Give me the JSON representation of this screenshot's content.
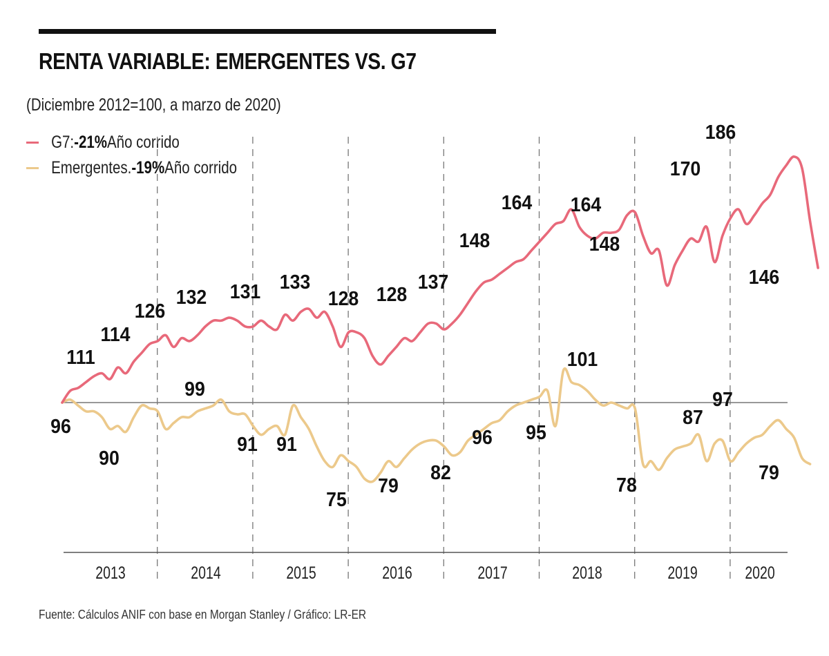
{
  "header": {
    "title": "RENTA VARIABLE: EMERGENTES VS. G7",
    "subtitle": "(Diciembre 2012=100, a marzo de 2020)"
  },
  "legend": [
    {
      "series": "G7",
      "prefix": "G7: ",
      "bold": "-21%",
      "suffix": " Año corrido",
      "color": "#e8697a"
    },
    {
      "series": "Emergentes",
      "prefix": "Emergentes. ",
      "bold": "-19%",
      "suffix": " Año corrido",
      "color": "#ecc98b"
    }
  ],
  "source": "Fuente: Cálculos ANIF con base en Morgan Stanley / Gráfico: LR-ER",
  "chart_data": {
    "type": "line",
    "title": "RENTA VARIABLE: EMERGENTES VS. G7",
    "subtitle": "(Diciembre 2012=100, a marzo de 2020)",
    "xlabel": "",
    "ylabel": "",
    "x_start": "2012-12",
    "x_end": "2020-03",
    "x_categories": [
      "2013",
      "2014",
      "2015",
      "2016",
      "2017",
      "2018",
      "2019",
      "2020"
    ],
    "baseline": 100,
    "ylim": [
      50,
      190
    ],
    "grid": "vertical dashed year separators",
    "legend_position": "top-left",
    "series": [
      {
        "name": "G7",
        "legend_note": "-21% Año corrido",
        "color": "#e8697a",
        "values": [
          100,
          104,
          105,
          107,
          109,
          110,
          108,
          112,
          110,
          114,
          117,
          120,
          121,
          123,
          119,
          122,
          121,
          123,
          126,
          128,
          128,
          129,
          128,
          126,
          126,
          128,
          126,
          125,
          130,
          128,
          131,
          132,
          129,
          131,
          126,
          119,
          124,
          124,
          122,
          116,
          113,
          116,
          119,
          122,
          121,
          124,
          127,
          127,
          125,
          127,
          130,
          134,
          138,
          141,
          142,
          144,
          146,
          148,
          149,
          152,
          155,
          158,
          161,
          162,
          166,
          160,
          157,
          156,
          158,
          158,
          159,
          164,
          165,
          157,
          151,
          152,
          140,
          147,
          152,
          156,
          155,
          160,
          148,
          157,
          163,
          166,
          161,
          164,
          168,
          171,
          177,
          181,
          184,
          180,
          162,
          146
        ],
        "annotations": [
          {
            "label": "111",
            "value": 111
          },
          {
            "label": "114",
            "value": 114
          },
          {
            "label": "126",
            "value": 126
          },
          {
            "label": "132",
            "value": 132
          },
          {
            "label": "131",
            "value": 131
          },
          {
            "label": "133",
            "value": 133
          },
          {
            "label": "128",
            "value": 128
          },
          {
            "label": "128",
            "value": 128
          },
          {
            "label": "137",
            "value": 137
          },
          {
            "label": "148",
            "value": 148
          },
          {
            "label": "164",
            "value": 164
          },
          {
            "label": "164",
            "value": 164
          },
          {
            "label": "148",
            "value": 148
          },
          {
            "label": "170",
            "value": 170
          },
          {
            "label": "186",
            "value": 186
          },
          {
            "label": "146",
            "value": 146
          }
        ]
      },
      {
        "name": "Emergentes",
        "legend_note": "-19% Año corrido",
        "color": "#ecc98b",
        "values": [
          100,
          101,
          99,
          97,
          97,
          95,
          91,
          92,
          90,
          95,
          99,
          98,
          97,
          91,
          93,
          95,
          95,
          97,
          98,
          99,
          101,
          97,
          96,
          96,
          92,
          89,
          91,
          92,
          89,
          99,
          95,
          91,
          85,
          80,
          78,
          82,
          80,
          78,
          74,
          73,
          76,
          80,
          78,
          81,
          84,
          86,
          87,
          87,
          85,
          82,
          83,
          87,
          89,
          91,
          93,
          94,
          97,
          99,
          100,
          101,
          102,
          104,
          92,
          111,
          107,
          106,
          104,
          101,
          99,
          100,
          99,
          98,
          98,
          79,
          80,
          77,
          81,
          84,
          85,
          86,
          89,
          80,
          86,
          87,
          80,
          83,
          86,
          88,
          89,
          92,
          94,
          91,
          88,
          81,
          79
        ],
        "annotations": [
          {
            "label": "96",
            "value": 96
          },
          {
            "label": "90",
            "value": 90
          },
          {
            "label": "99",
            "value": 99
          },
          {
            "label": "91",
            "value": 91
          },
          {
            "label": "91",
            "value": 91
          },
          {
            "label": "75",
            "value": 75
          },
          {
            "label": "79",
            "value": 79
          },
          {
            "label": "82",
            "value": 82
          },
          {
            "label": "96",
            "value": 96
          },
          {
            "label": "95",
            "value": 95
          },
          {
            "label": "101",
            "value": 101
          },
          {
            "label": "78",
            "value": 78
          },
          {
            "label": "87",
            "value": 87
          },
          {
            "label": "97",
            "value": 97
          },
          {
            "label": "79",
            "value": 79
          }
        ]
      }
    ]
  }
}
